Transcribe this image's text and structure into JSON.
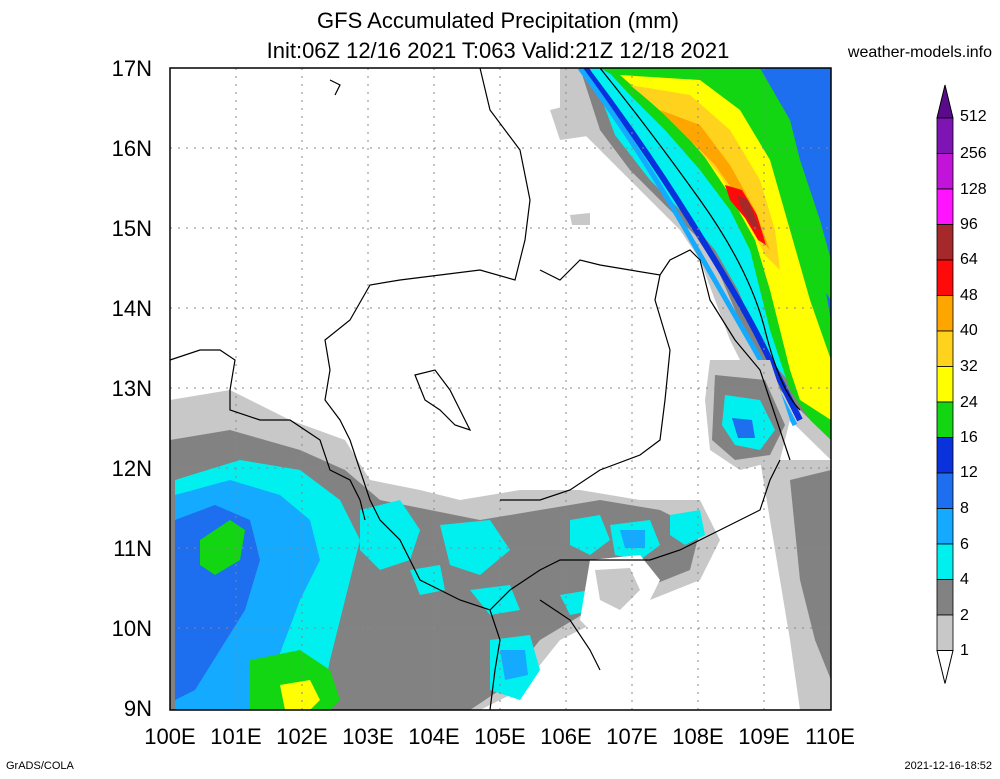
{
  "title_line1": "GFS Accumulated Precipitation (mm)",
  "title_line2": "Init:06Z 12/16 2021 T:063 Valid:21Z 12/18 2021",
  "website": "weather-models.info",
  "credit": "GrADS/COLA",
  "timestamp": "2021-12-16-18:52",
  "lat_labels": [
    "17N",
    "16N",
    "15N",
    "14N",
    "13N",
    "12N",
    "11N",
    "10N",
    "9N"
  ],
  "lon_labels": [
    "100E",
    "101E",
    "102E",
    "103E",
    "104E",
    "105E",
    "106E",
    "107E",
    "108E",
    "109E",
    "110E"
  ],
  "colorbar": {
    "labels": [
      "512",
      "256",
      "128",
      "96",
      "64",
      "48",
      "40",
      "32",
      "24",
      "16",
      "12",
      "8",
      "6",
      "4",
      "2",
      "1"
    ],
    "colors": [
      "#5b0a8c",
      "#7e14b4",
      "#c214d8",
      "#ff14ff",
      "#a5282a",
      "#ff0a0a",
      "#ffa500",
      "#ffd21e",
      "#ffff00",
      "#11d611",
      "#0a32dc",
      "#1e6ef0",
      "#14aaff",
      "#00f0f0",
      "#828282",
      "#c8c8c8"
    ]
  }
}
